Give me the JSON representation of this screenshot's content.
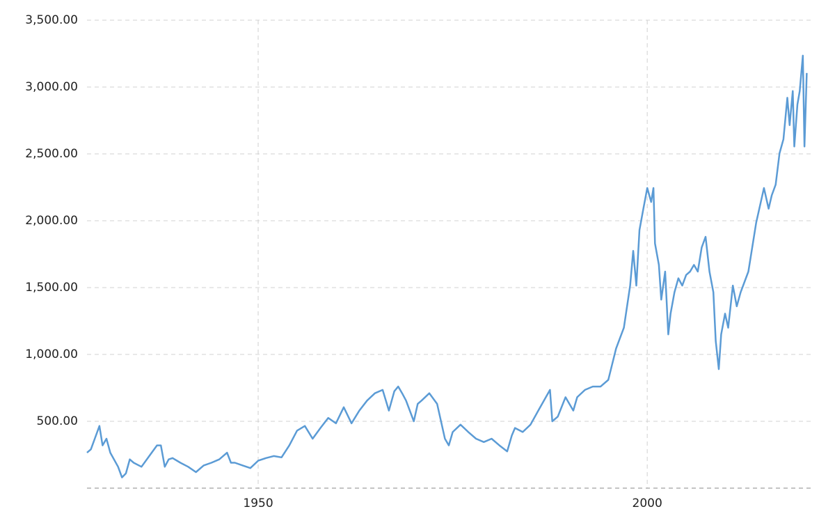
{
  "chart_data": {
    "type": "line",
    "x": [
      1928.0,
      1928.5,
      1929.0,
      1929.6,
      1930.0,
      1930.5,
      1931.0,
      1932.0,
      1932.5,
      1933.0,
      1933.5,
      1934.0,
      1935.0,
      1936.0,
      1937.0,
      1937.5,
      1938.0,
      1938.5,
      1939.0,
      1940.0,
      1941.0,
      1942.0,
      1943.0,
      1944.0,
      1945.0,
      1946.0,
      1946.5,
      1947.0,
      1948.0,
      1949.0,
      1950.0,
      1951.0,
      1952.0,
      1953.0,
      1954.0,
      1955.0,
      1956.0,
      1957.0,
      1958.0,
      1959.0,
      1960.0,
      1961.0,
      1962.0,
      1963.0,
      1964.0,
      1965.0,
      1966.0,
      1966.8,
      1967.5,
      1968.0,
      1968.5,
      1969.0,
      1970.0,
      1970.5,
      1971.0,
      1972.0,
      1973.0,
      1974.0,
      1974.5,
      1975.0,
      1976.0,
      1977.0,
      1978.0,
      1979.0,
      1980.0,
      1981.0,
      1982.0,
      1982.6,
      1983.0,
      1984.0,
      1985.0,
      1986.0,
      1987.5,
      1987.8,
      1988.5,
      1989.5,
      1990.5,
      1991.0,
      1992.0,
      1993.0,
      1994.0,
      1995.0,
      1996.0,
      1997.0,
      1997.8,
      1998.2,
      1998.6,
      1999.0,
      1999.5,
      2000.0,
      2000.5,
      2000.8,
      2001.0,
      2001.5,
      2001.8,
      2002.3,
      2002.7,
      2003.0,
      2003.5,
      2004.0,
      2004.5,
      2005.0,
      2005.5,
      2006.0,
      2006.5,
      2007.0,
      2007.5,
      2008.0,
      2008.5,
      2008.8,
      2009.2,
      2009.5,
      2010.0,
      2010.4,
      2011.0,
      2011.5,
      2012.0,
      2013.0,
      2014.0,
      2015.0,
      2015.6,
      2016.0,
      2016.5,
      2017.0,
      2017.5,
      2018.0,
      2018.3,
      2018.7,
      2018.9,
      2019.3,
      2019.6,
      2020.0,
      2020.2,
      2020.5
    ],
    "series": [
      {
        "color": "#5b9bd5",
        "values": [
          265,
          290,
          370,
          465,
          320,
          370,
          265,
          160,
          80,
          110,
          215,
          190,
          160,
          240,
          320,
          320,
          160,
          215,
          225,
          190,
          160,
          120,
          170,
          190,
          215,
          265,
          190,
          190,
          170,
          150,
          205,
          225,
          240,
          230,
          320,
          430,
          465,
          370,
          450,
          525,
          485,
          605,
          485,
          580,
          655,
          710,
          735,
          580,
          725,
          760,
          710,
          655,
          500,
          630,
          655,
          710,
          630,
          370,
          320,
          420,
          475,
          420,
          370,
          345,
          370,
          320,
          275,
          395,
          450,
          420,
          475,
          580,
          735,
          500,
          535,
          680,
          580,
          680,
          735,
          760,
          760,
          810,
          1045,
          1200,
          1515,
          1775,
          1515,
          1930,
          2090,
          2245,
          2140,
          2245,
          1830,
          1670,
          1410,
          1620,
          1150,
          1305,
          1465,
          1570,
          1515,
          1595,
          1620,
          1670,
          1620,
          1800,
          1880,
          1620,
          1465,
          1100,
          890,
          1150,
          1305,
          1200,
          1515,
          1360,
          1465,
          1620,
          1985,
          2245,
          2090,
          2190,
          2270,
          2505,
          2610,
          2920,
          2715,
          2970,
          2555,
          2870,
          2970,
          3235,
          2555,
          3105
        ]
      }
    ],
    "xlim": [
      1928,
      2021
    ],
    "xticks": [
      1950,
      2000
    ],
    "ylim": [
      0,
      3500
    ],
    "yticks": [
      {
        "value": 500,
        "label": "500.00"
      },
      {
        "value": 1000,
        "label": "1,000.00"
      },
      {
        "value": 1500,
        "label": "1,500.00"
      },
      {
        "value": 2000,
        "label": "2,000.00"
      },
      {
        "value": 2500,
        "label": "2,500.00"
      },
      {
        "value": 3000,
        "label": "3,000.00"
      },
      {
        "value": 3500,
        "label": "3,500.00"
      }
    ],
    "grid": true
  }
}
